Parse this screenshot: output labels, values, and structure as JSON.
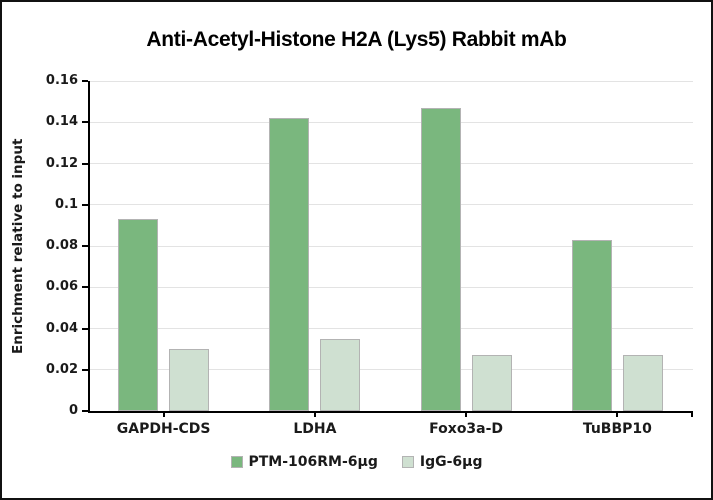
{
  "window": {
    "background_color": "#ffffff",
    "border_color": "#111111"
  },
  "chart_data": {
    "type": "bar",
    "title": "Anti-Acetyl-Histone H2A (Lys5) Rabbit mAb",
    "xlabel": "",
    "ylabel": "Enrichment relative to input",
    "categories": [
      "GAPDH-CDS",
      "LDHA",
      "Foxo3a-D",
      "TuBBP10"
    ],
    "series": [
      {
        "name": "PTM-106RM-6µg",
        "color": "#7ab77e",
        "values": [
          0.093,
          0.142,
          0.147,
          0.083
        ]
      },
      {
        "name": "IgG-6µg",
        "color": "#cfe0d1",
        "values": [
          0.03,
          0.035,
          0.027,
          0.027
        ]
      }
    ],
    "ylim": [
      0,
      0.16
    ],
    "ytick_step": 0.02,
    "grid": true,
    "legend_position": "bottom",
    "gridline_color": "#e3e3e3",
    "bar_border_color": "#b3b3b3",
    "axis_color": "#000000",
    "text_color": "#1a1a1a"
  }
}
